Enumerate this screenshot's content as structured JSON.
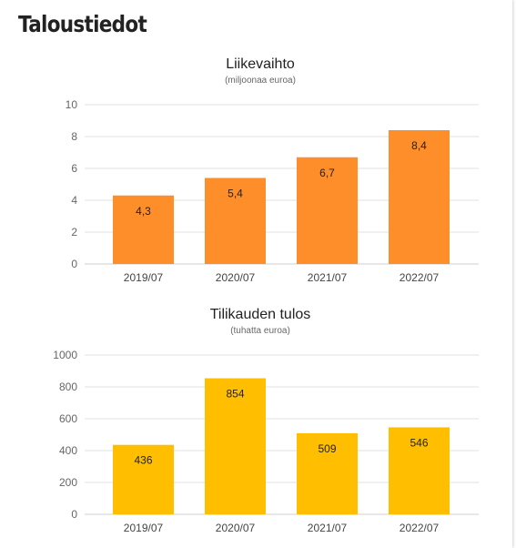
{
  "page": {
    "heading": "Taloustiedot"
  },
  "chart_data": [
    {
      "type": "bar",
      "title": "Liikevaihto",
      "subtitle": "(miljoonaa euroa)",
      "categories": [
        "2019/07",
        "2020/07",
        "2021/07",
        "2022/07"
      ],
      "values": [
        4.3,
        5.4,
        6.7,
        8.4
      ],
      "data_labels": [
        "4,3",
        "5,4",
        "6,7",
        "8,4"
      ],
      "ylim": [
        0,
        10
      ],
      "yticks": [
        0,
        2,
        4,
        6,
        8,
        10
      ],
      "color": "#fe8e29",
      "grid": true,
      "legend": "none"
    },
    {
      "type": "bar",
      "title": "Tilikauden tulos",
      "subtitle": "(tuhatta euroa)",
      "categories": [
        "2019/07",
        "2020/07",
        "2021/07",
        "2022/07"
      ],
      "values": [
        436,
        854,
        509,
        546
      ],
      "data_labels": [
        "436",
        "854",
        "509",
        "546"
      ],
      "ylim": [
        0,
        1000
      ],
      "yticks": [
        0,
        200,
        400,
        600,
        800,
        1000
      ],
      "color": "#ffbf00",
      "grid": true,
      "legend": "none"
    }
  ]
}
